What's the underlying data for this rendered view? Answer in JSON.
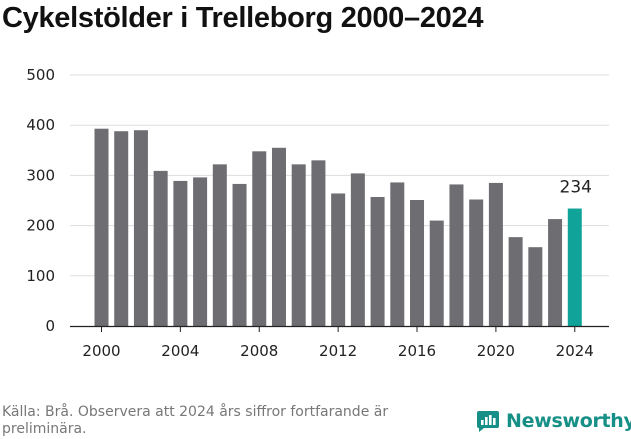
{
  "title": "Cykelstölder i Trelleborg 2000–2024",
  "source": "Källa: Brå. Observera att 2024 års siffror fortfarande är preliminära.",
  "brand": {
    "name": "Newsworthy",
    "icon": "newsworthy-logo-icon"
  },
  "colors": {
    "bar": "#6e6d72",
    "highlight": "#0fa39a",
    "grid": "#dddddd",
    "axis": "#222222",
    "text": "#222222"
  },
  "chart_data": {
    "type": "bar",
    "title": "Cykelstölder i Trelleborg 2000–2024",
    "xlabel": "",
    "ylabel": "",
    "categories": [
      "2000",
      "2001",
      "2002",
      "2003",
      "2004",
      "2005",
      "2006",
      "2007",
      "2008",
      "2009",
      "2010",
      "2011",
      "2012",
      "2013",
      "2014",
      "2015",
      "2016",
      "2017",
      "2018",
      "2019",
      "2020",
      "2021",
      "2022",
      "2023",
      "2024"
    ],
    "values": [
      393,
      388,
      390,
      309,
      289,
      296,
      322,
      283,
      348,
      355,
      322,
      330,
      264,
      304,
      257,
      286,
      251,
      210,
      282,
      252,
      285,
      177,
      157,
      213,
      234
    ],
    "highlight": {
      "category": "2024",
      "label": "234"
    },
    "ylim": [
      0,
      500
    ],
    "yticks": [
      "0",
      "100",
      "200",
      "300",
      "400",
      "500"
    ],
    "xticks": [
      "2000",
      "2004",
      "2008",
      "2012",
      "2016",
      "2020",
      "2024"
    ],
    "grid": true
  }
}
